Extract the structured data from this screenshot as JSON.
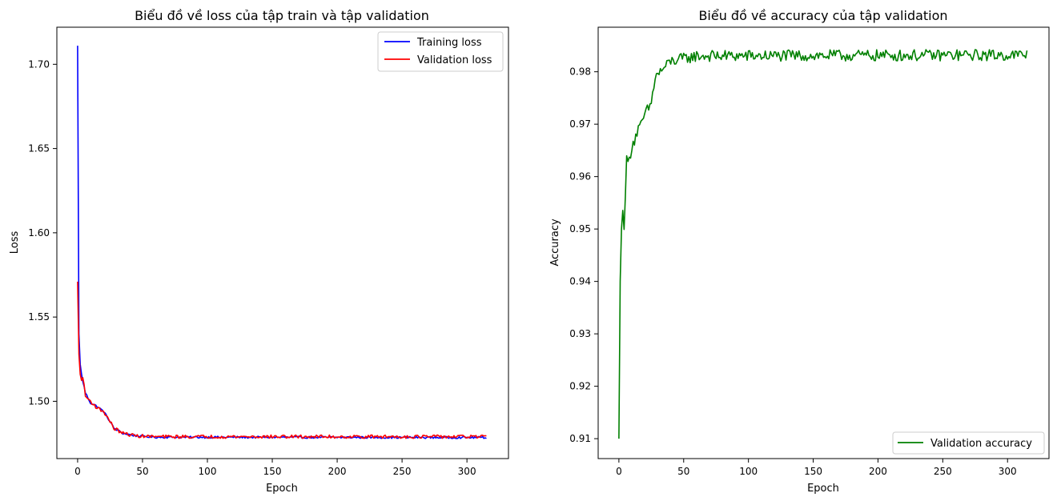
{
  "chart_data": [
    {
      "type": "line",
      "title": "Biểu đồ về loss của tập train và tập validation",
      "xlabel": "Epoch",
      "ylabel": "Loss",
      "xlim": [
        -16,
        332
      ],
      "ylim": [
        1.466,
        1.722
      ],
      "xticks": [
        0,
        50,
        100,
        150,
        200,
        250,
        300
      ],
      "yticks": [
        1.5,
        1.55,
        1.6,
        1.65,
        1.7
      ],
      "ytick_labels": [
        "1.50",
        "1.55",
        "1.60",
        "1.65",
        "1.70"
      ],
      "legend": "top-right",
      "epochs": 316,
      "series": [
        {
          "name": "Training loss",
          "color": "#0000ff",
          "keypoints": [
            [
              0,
              1.711
            ],
            [
              1,
              1.54
            ],
            [
              2,
              1.522
            ],
            [
              3,
              1.516
            ],
            [
              4,
              1.512
            ],
            [
              6,
              1.505
            ],
            [
              10,
              1.499
            ],
            [
              15,
              1.497
            ],
            [
              20,
              1.494
            ],
            [
              25,
              1.488
            ],
            [
              28,
              1.484
            ],
            [
              35,
              1.481
            ],
            [
              45,
              1.4795
            ],
            [
              60,
              1.4787
            ],
            [
              316,
              1.4785
            ]
          ],
          "noise": 0.0006
        },
        {
          "name": "Validation loss",
          "color": "#ff0000",
          "keypoints": [
            [
              0,
              1.571
            ],
            [
              1,
              1.528
            ],
            [
              2,
              1.516
            ],
            [
              3,
              1.512
            ],
            [
              4,
              1.515
            ],
            [
              6,
              1.503
            ],
            [
              10,
              1.5
            ],
            [
              15,
              1.496
            ],
            [
              20,
              1.494
            ],
            [
              25,
              1.488
            ],
            [
              28,
              1.484
            ],
            [
              35,
              1.481
            ],
            [
              45,
              1.4795
            ],
            [
              60,
              1.479
            ],
            [
              316,
              1.479
            ]
          ],
          "noise": 0.001
        }
      ]
    },
    {
      "type": "line",
      "title": "Biểu đồ về accuracy của tập validation",
      "xlabel": "Epoch",
      "ylabel": "Accuracy",
      "xlim": [
        -16,
        332
      ],
      "ylim": [
        0.9062,
        0.9885
      ],
      "xticks": [
        0,
        50,
        100,
        150,
        200,
        250,
        300
      ],
      "yticks": [
        0.91,
        0.92,
        0.93,
        0.94,
        0.95,
        0.96,
        0.97,
        0.98
      ],
      "ytick_labels": [
        "0.91",
        "0.92",
        "0.93",
        "0.94",
        "0.95",
        "0.96",
        "0.97",
        "0.98"
      ],
      "legend": "bottom-right",
      "epochs": 316,
      "series": [
        {
          "name": "Validation accuracy",
          "color": "#008000",
          "keypoints": [
            [
              0,
              0.91
            ],
            [
              1,
              0.94
            ],
            [
              2,
              0.95
            ],
            [
              3,
              0.953
            ],
            [
              4,
              0.951
            ],
            [
              6,
              0.963
            ],
            [
              8,
              0.963
            ],
            [
              10,
              0.966
            ],
            [
              12,
              0.967
            ],
            [
              15,
              0.969
            ],
            [
              18,
              0.97
            ],
            [
              20,
              0.972
            ],
            [
              23,
              0.973
            ],
            [
              25,
              0.974
            ],
            [
              28,
              0.979
            ],
            [
              32,
              0.98
            ],
            [
              40,
              0.982
            ],
            [
              50,
              0.9825
            ],
            [
              60,
              0.983
            ],
            [
              316,
              0.9832
            ]
          ],
          "noise": 0.0011
        }
      ]
    }
  ]
}
